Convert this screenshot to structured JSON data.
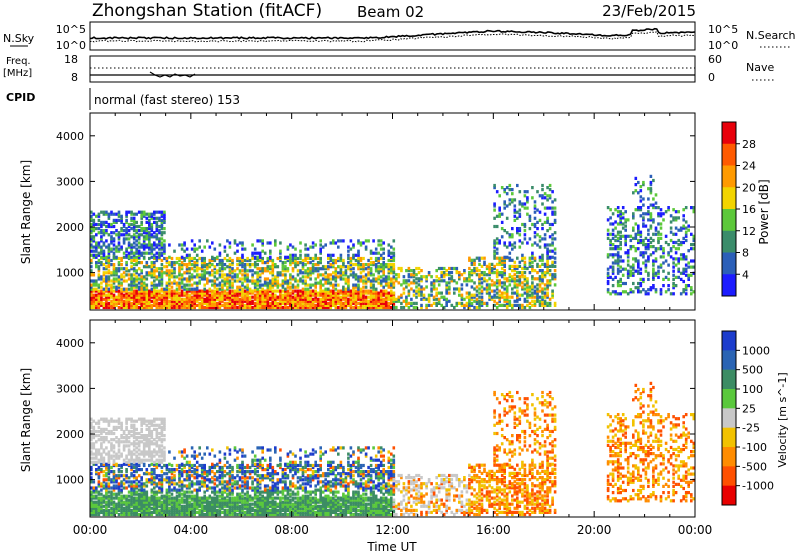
{
  "header": {
    "title": "Zhongshan Station (fitACF)",
    "beam": "Beam 02",
    "date": "23/Feb/2015"
  },
  "top_strip": {
    "nsky_label": "N.Sky",
    "nsky_ticks": [
      "10^5",
      "10^0"
    ],
    "nsearch_label": "N.Search",
    "nsearch_ticks": [
      "10^5",
      "10^0"
    ],
    "freq_label": "Freq.",
    "freq_unit": "[MHz]",
    "freq_ticks": [
      "18",
      "8"
    ],
    "nave_label": "Nave",
    "nave_ticks": [
      "60",
      "0"
    ],
    "cpid_label": "CPID",
    "cpid_text": "normal (fast stereo) 153"
  },
  "chart_data": [
    {
      "type": "heatmap",
      "name": "power",
      "ylabel": "Slant Range [km]",
      "xlabel": "",
      "xlim": [
        0,
        24
      ],
      "ylim": [
        180,
        4500
      ],
      "yticks": [
        1000,
        2000,
        3000,
        4000
      ],
      "colorbar_label": "Power [dB]",
      "colorbar_ticks": [
        "28",
        "24",
        "20",
        "16",
        "12",
        "8",
        "4"
      ],
      "colorbar_colors": [
        "#e8000b",
        "#ff5a00",
        "#ff9a00",
        "#f2d400",
        "#5cc83a",
        "#3a8c6a",
        "#2b5fb8",
        "#1c1cff"
      ]
    },
    {
      "type": "heatmap",
      "name": "velocity",
      "ylabel": "Slant Range [km]",
      "xlabel": "Time UT",
      "xlim": [
        0,
        24
      ],
      "ylim": [
        180,
        4500
      ],
      "yticks": [
        1000,
        2000,
        3000,
        4000
      ],
      "xticks": [
        "00:00",
        "04:00",
        "08:00",
        "12:00",
        "16:00",
        "20:00",
        "00:00"
      ],
      "colorbar_label": "Velocity [m s^-1]",
      "colorbar_ticks": [
        "1000",
        "500",
        "100",
        "25",
        "-25",
        "-100",
        "-500",
        "-1000"
      ],
      "colorbar_colors": [
        "#1c3ccc",
        "#2a64b4",
        "#3c8c64",
        "#5ac83c",
        "#c8c8c8",
        "#f2c200",
        "#ff8c00",
        "#ff5000",
        "#e80000"
      ]
    }
  ]
}
